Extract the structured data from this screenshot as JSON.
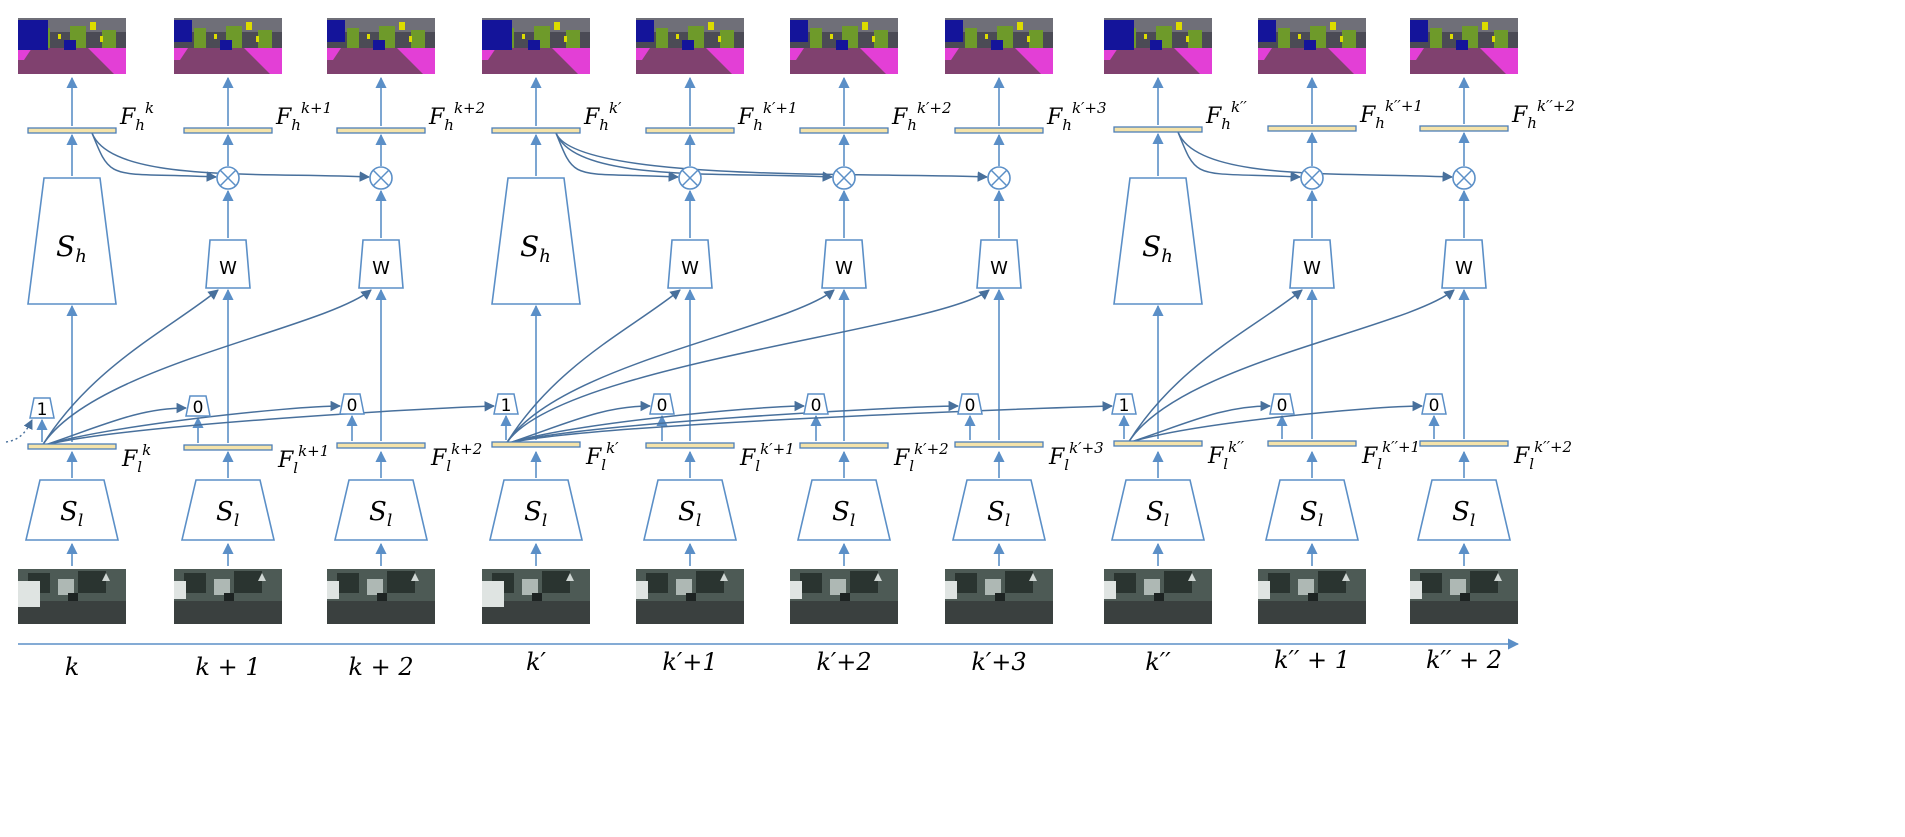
{
  "diagram": {
    "columns": [
      {
        "type": "key",
        "time": "k",
        "fh_base": "F",
        "fh_sub": "h",
        "fh_sup": "k",
        "fl_base": "F",
        "fl_sub": "l",
        "fl_sup": "k",
        "gate": "1",
        "sl_base": "S",
        "sl_sub": "l",
        "sh_base": "S",
        "sh_sub": "h"
      },
      {
        "type": "non",
        "time": "k + 1",
        "fh_base": "F",
        "fh_sub": "h",
        "fh_sup": "k+1",
        "fl_base": "F",
        "fl_sub": "l",
        "fl_sup": "k+1",
        "gate": "0",
        "sl_base": "S",
        "sl_sub": "l",
        "w": "W"
      },
      {
        "type": "non",
        "time": "k + 2",
        "fh_base": "F",
        "fh_sub": "h",
        "fh_sup": "k+2",
        "fl_base": "F",
        "fl_sub": "l",
        "fl_sup": "k+2",
        "gate": "0",
        "sl_base": "S",
        "sl_sub": "l",
        "w": "W"
      },
      {
        "type": "key",
        "time": "k′",
        "fh_base": "F",
        "fh_sub": "h",
        "fh_sup": "k′",
        "fl_base": "F",
        "fl_sub": "l",
        "fl_sup": "k′",
        "gate": "1",
        "sl_base": "S",
        "sl_sub": "l",
        "sh_base": "S",
        "sh_sub": "h"
      },
      {
        "type": "non",
        "time": "k′+1",
        "fh_base": "F",
        "fh_sub": "h",
        "fh_sup": "k′+1",
        "fl_base": "F",
        "fl_sub": "l",
        "fl_sup": "k′+1",
        "gate": "0",
        "sl_base": "S",
        "sl_sub": "l",
        "w": "W"
      },
      {
        "type": "non",
        "time": "k′+2",
        "fh_base": "F",
        "fh_sub": "h",
        "fh_sup": "k′+2",
        "fl_base": "F",
        "fl_sub": "l",
        "fl_sup": "k′+2",
        "gate": "0",
        "sl_base": "S",
        "sl_sub": "l",
        "w": "W"
      },
      {
        "type": "non",
        "time": "k′+3",
        "fh_base": "F",
        "fh_sub": "h",
        "fh_sup": "k′+3",
        "fl_base": "F",
        "fl_sub": "l",
        "fl_sup": "k′+3",
        "gate": "0",
        "sl_base": "S",
        "sl_sub": "l",
        "w": "W"
      },
      {
        "type": "key",
        "time": "k′′",
        "fh_base": "F",
        "fh_sub": "h",
        "fh_sup": "k′′",
        "fl_base": "F",
        "fl_sub": "l",
        "fl_sup": "k′′",
        "gate": "1",
        "sl_base": "S",
        "sl_sub": "l",
        "sh_base": "S",
        "sh_sub": "h"
      },
      {
        "type": "non",
        "time": "k′′ + 1",
        "fh_base": "F",
        "fh_sub": "h",
        "fh_sup": "k′′+1",
        "fl_base": "F",
        "fl_sub": "l",
        "fl_sup": "k′′+1",
        "gate": "0",
        "sl_base": "S",
        "sl_sub": "l",
        "w": "W"
      },
      {
        "type": "non",
        "time": "k′′ + 2",
        "fh_base": "F",
        "fh_sub": "h",
        "fh_sup": "k′′+2",
        "fl_base": "F",
        "fl_sub": "l",
        "fl_sup": "k′′+2",
        "gate": "0",
        "sl_base": "S",
        "sl_sub": "l",
        "w": "W"
      }
    ],
    "colors": {
      "line": "#5b8fc7",
      "feature_fill": "#f5e3a9",
      "feature_stroke": "#4e7fb8",
      "seg_sky": "#6f6f78",
      "seg_building": "#4b4b55",
      "seg_vegetation": "#6e9a2a",
      "seg_road": "#80416f",
      "seg_sidewalk": "#e33fd6",
      "seg_car": "#14149a",
      "seg_sign": "#dcdc00",
      "frame_dark": "#2a3430",
      "frame_mid": "#4d5a55",
      "frame_light": "#aeb8b4",
      "frame_road": "#3a403f"
    },
    "icons": {
      "multiply": "circled-times",
      "timeline": "arrow-right"
    }
  }
}
